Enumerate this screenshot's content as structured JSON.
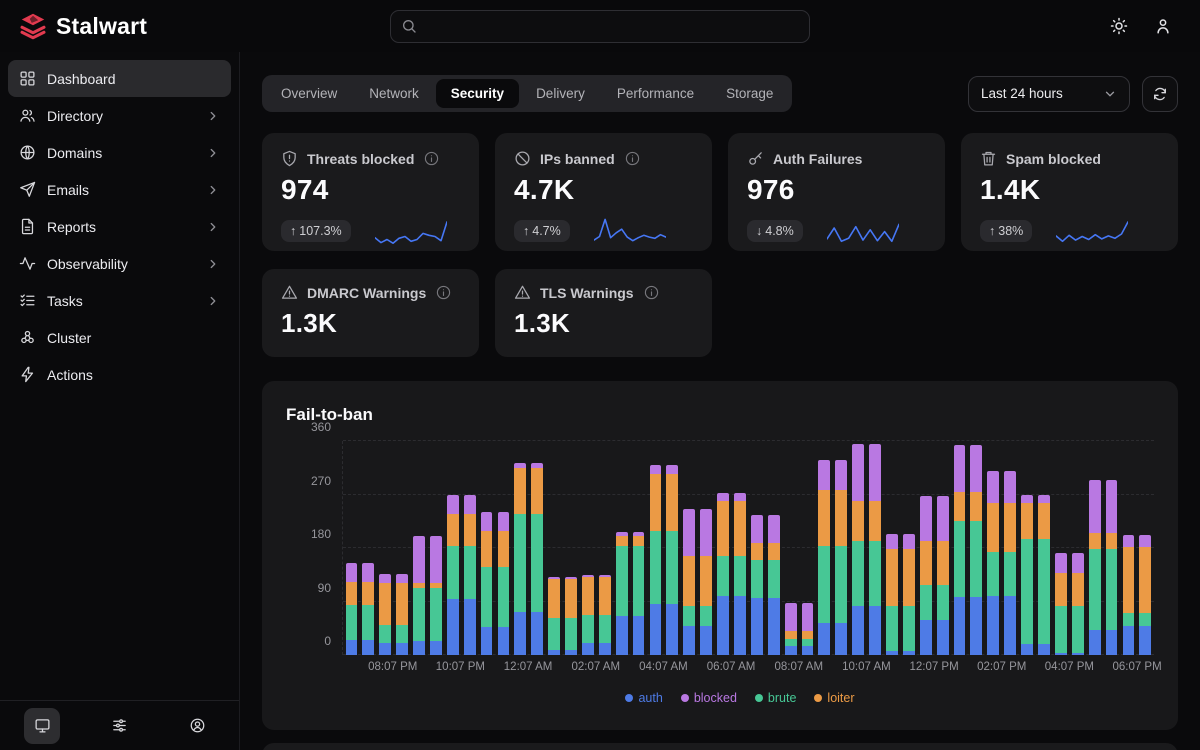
{
  "app": {
    "name": "Stalwart",
    "brand_color": "#e23a4f"
  },
  "topbar": {
    "search": {
      "value": "",
      "placeholder": ""
    },
    "icons": [
      "theme-sun-icon",
      "user-icon"
    ]
  },
  "sidebar": {
    "items": [
      {
        "label": "Dashboard",
        "icon": "grid",
        "expandable": false,
        "active": true
      },
      {
        "label": "Directory",
        "icon": "users",
        "expandable": true,
        "active": false
      },
      {
        "label": "Domains",
        "icon": "globe",
        "expandable": true,
        "active": false
      },
      {
        "label": "Emails",
        "icon": "send",
        "expandable": true,
        "active": false
      },
      {
        "label": "Reports",
        "icon": "file",
        "expandable": true,
        "active": false
      },
      {
        "label": "Observability",
        "icon": "activity",
        "expandable": true,
        "active": false
      },
      {
        "label": "Tasks",
        "icon": "tasks",
        "expandable": true,
        "active": false
      },
      {
        "label": "Cluster",
        "icon": "cluster",
        "expandable": false,
        "active": false
      },
      {
        "label": "Actions",
        "icon": "zap",
        "expandable": false,
        "active": false
      }
    ],
    "footer_icons": [
      {
        "name": "monitor",
        "active": true
      },
      {
        "name": "sliders",
        "active": false
      },
      {
        "name": "user-circle",
        "active": false
      }
    ]
  },
  "tabs": [
    "Overview",
    "Network",
    "Security",
    "Delivery",
    "Performance",
    "Storage"
  ],
  "active_tab": "Security",
  "controls": {
    "time_range": "Last 24 hours",
    "refresh_icon": "refresh"
  },
  "stats": [
    {
      "icon": "shield",
      "label": "Threats blocked",
      "has_info": true,
      "value": "974",
      "trend": "107.3%",
      "trend_dir": "up",
      "sparkline": [
        12,
        4,
        9,
        3,
        11,
        14,
        6,
        9,
        19,
        16,
        14,
        7,
        38
      ]
    },
    {
      "icon": "ban",
      "label": "IPs banned",
      "has_info": true,
      "value": "4.7K",
      "trend": "4.7%",
      "trend_dir": "up",
      "sparkline": [
        8,
        14,
        42,
        12,
        20,
        26,
        13,
        7,
        12,
        16,
        13,
        11,
        17,
        13
      ]
    },
    {
      "icon": "key",
      "label": "Auth Failures",
      "has_info": false,
      "value": "976",
      "trend": "4.8%",
      "trend_dir": "down",
      "sparkline": [
        10,
        28,
        6,
        11,
        30,
        8,
        25,
        7,
        22,
        6,
        34
      ]
    },
    {
      "icon": "trash",
      "label": "Spam blocked",
      "has_info": false,
      "value": "1.4K",
      "trend": "38%",
      "trend_dir": "up",
      "sparkline": [
        15,
        6,
        16,
        8,
        14,
        9,
        17,
        10,
        15,
        11,
        18,
        38
      ]
    }
  ],
  "warnings": [
    {
      "icon": "alert",
      "label": "DMARC Warnings",
      "has_info": true,
      "value": "1.3K"
    },
    {
      "icon": "alert",
      "label": "TLS Warnings",
      "has_info": true,
      "value": "1.3K"
    }
  ],
  "chart_data": {
    "type": "bar",
    "stacked": true,
    "title": "Fail-to-ban",
    "interval_minutes": 30,
    "x_tick_labels": [
      "08:07 PM",
      "10:07 PM",
      "12:07 AM",
      "02:07 AM",
      "04:07 AM",
      "06:07 AM",
      "08:07 AM",
      "10:07 AM",
      "12:07 PM",
      "02:07 PM",
      "04:07 PM",
      "06:07 PM"
    ],
    "y_ticks": [
      0,
      90,
      180,
      270,
      360
    ],
    "ylim": [
      0,
      360
    ],
    "grid": "dashed-horizontal",
    "legend_position": "bottom-center",
    "series": [
      {
        "name": "auth",
        "color": "#4e7be6",
        "values": [
          26,
          26,
          21,
          21,
          23,
          23,
          95,
          95,
          47,
          47,
          72,
          72,
          9,
          9,
          20,
          20,
          66,
          66,
          86,
          86,
          49,
          49,
          99,
          99,
          96,
          96,
          15,
          15,
          54,
          54,
          82,
          82,
          6,
          6,
          59,
          59,
          97,
          97,
          99,
          99,
          19,
          19,
          3,
          3,
          42,
          42,
          49,
          49
        ]
      },
      {
        "name": "brute",
        "color": "#47c795",
        "values": [
          58,
          58,
          29,
          29,
          90,
          90,
          89,
          89,
          101,
          101,
          165,
          165,
          54,
          54,
          48,
          48,
          117,
          117,
          122,
          122,
          34,
          34,
          67,
          67,
          64,
          64,
          12,
          12,
          129,
          129,
          109,
          109,
          76,
          76,
          59,
          59,
          128,
          128,
          75,
          75,
          176,
          176,
          79,
          79,
          136,
          136,
          22,
          22
        ]
      },
      {
        "name": "loiter",
        "color": "#eb9a45",
        "values": [
          39,
          39,
          71,
          71,
          8,
          8,
          53,
          53,
          60,
          60,
          78,
          78,
          65,
          65,
          64,
          64,
          17,
          17,
          97,
          97,
          83,
          83,
          93,
          93,
          28,
          28,
          13,
          13,
          94,
          94,
          68,
          68,
          96,
          96,
          73,
          73,
          49,
          49,
          82,
          82,
          61,
          61,
          56,
          56,
          27,
          27,
          110,
          110
        ]
      },
      {
        "name": "blocked",
        "color": "#b978e2",
        "values": [
          31,
          31,
          16,
          16,
          80,
          80,
          33,
          33,
          33,
          33,
          8,
          8,
          3,
          3,
          3,
          3,
          7,
          7,
          14,
          14,
          79,
          79,
          14,
          14,
          48,
          48,
          47,
          47,
          51,
          51,
          96,
          96,
          26,
          26,
          77,
          77,
          79,
          79,
          53,
          53,
          14,
          14,
          34,
          34,
          89,
          89,
          21,
          21
        ]
      }
    ],
    "stack_order_bottom_to_top": [
      "auth",
      "brute",
      "loiter",
      "blocked"
    ],
    "legend_order": [
      "auth",
      "blocked",
      "brute",
      "loiter"
    ]
  }
}
